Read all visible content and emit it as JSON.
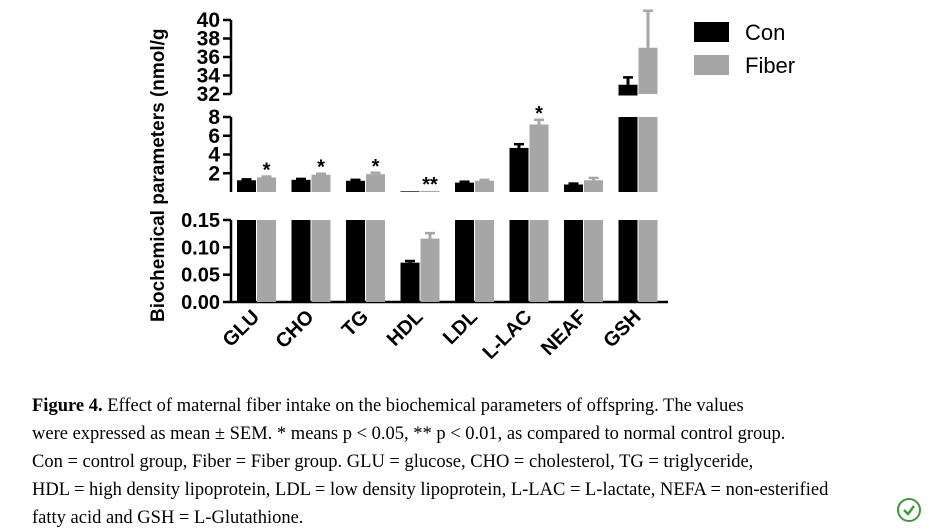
{
  "chart_data": {
    "type": "bar",
    "ylabel": "Biochemical parameters (nmol/g",
    "categories": [
      "GLU",
      "CHO",
      "TG",
      "HDL",
      "LDL",
      "L-LAC",
      "NEAF",
      "GSH"
    ],
    "series": [
      {
        "name": "Con",
        "color": "#000000",
        "values": [
          1.25,
          1.3,
          1.2,
          0.072,
          1.0,
          4.7,
          0.8,
          33.0
        ],
        "errors": [
          0.1,
          0.1,
          0.1,
          0.003,
          0.1,
          0.4,
          0.1,
          0.8
        ]
      },
      {
        "name": "Fiber",
        "color": "#a6a6a6",
        "values": [
          1.55,
          1.85,
          1.9,
          0.116,
          1.2,
          7.2,
          1.25,
          37.0
        ],
        "errors": [
          0.1,
          0.1,
          0.15,
          0.01,
          0.1,
          0.5,
          0.25,
          4.0
        ]
      }
    ],
    "significance": [
      {
        "category": "GLU",
        "mark": "*"
      },
      {
        "category": "CHO",
        "mark": "*"
      },
      {
        "category": "TG",
        "mark": "*"
      },
      {
        "category": "HDL",
        "mark": "**"
      },
      {
        "category": "L-LAC",
        "mark": "*"
      }
    ],
    "axis_segments": [
      {
        "range": [
          32,
          40
        ],
        "ticks": [
          "32",
          "34",
          "36",
          "38",
          "40"
        ]
      },
      {
        "range": [
          0,
          8
        ],
        "ticks": [
          "2",
          "4",
          "6",
          "8"
        ]
      },
      {
        "range": [
          0,
          0.15
        ],
        "ticks": [
          "0.00",
          "0.05",
          "0.10",
          "0.15"
        ]
      }
    ],
    "legend": {
      "position": "top-right",
      "entries": [
        "Con",
        "Fiber"
      ]
    }
  },
  "caption": {
    "label": "Figure 4.",
    "lines": [
      " Effect of maternal fiber intake on the biochemical parameters of offspring. The values",
      "were expressed as mean ± SEM. * means p < 0.05, ** p < 0.01, as compared to normal control group.",
      "Con = control group, Fiber = Fiber group. GLU = glucose, CHO = cholesterol, TG = triglyceride,",
      "HDL = high density lipoprotein, LDL = low density lipoprotein, L-LAC = L-lactate, NEFA = non-esterified",
      "fatty acid and GSH = L-Glutathione."
    ]
  }
}
